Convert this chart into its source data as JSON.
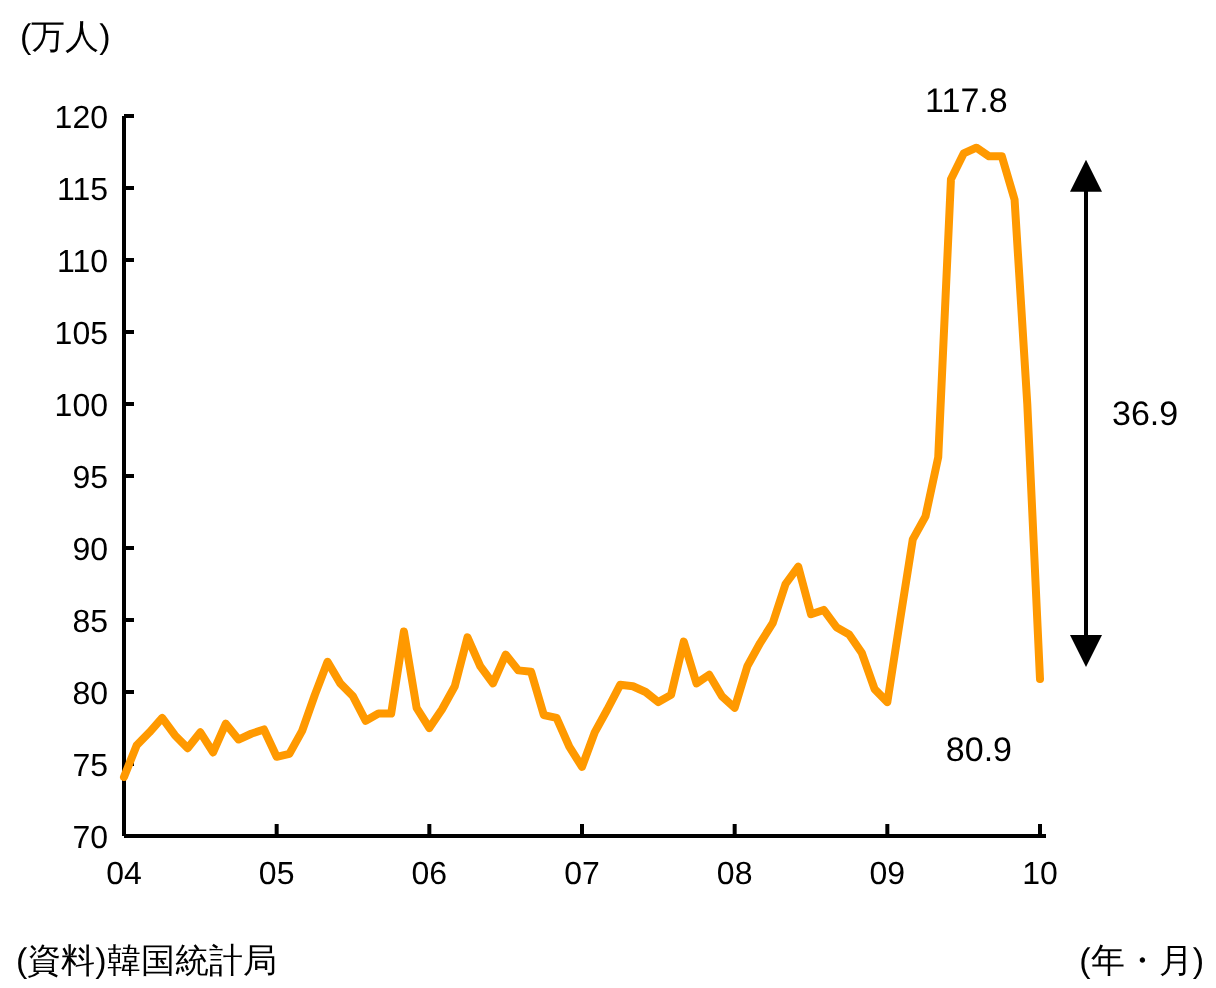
{
  "chart_data": {
    "type": "line",
    "ylabel": "(万人)",
    "xlabel": "(年・月)",
    "x": [
      "2004-01",
      "2004-02",
      "2004-03",
      "2004-04",
      "2004-05",
      "2004-06",
      "2004-07",
      "2004-08",
      "2004-09",
      "2004-10",
      "2004-11",
      "2004-12",
      "2005-01",
      "2005-02",
      "2005-03",
      "2005-04",
      "2005-05",
      "2005-06",
      "2005-07",
      "2005-08",
      "2005-09",
      "2005-10",
      "2005-11",
      "2005-12",
      "2006-01",
      "2006-02",
      "2006-03",
      "2006-04",
      "2006-05",
      "2006-06",
      "2006-07",
      "2006-08",
      "2006-09",
      "2006-10",
      "2006-11",
      "2006-12",
      "2007-01",
      "2007-02",
      "2007-03",
      "2007-04",
      "2007-05",
      "2007-06",
      "2007-07",
      "2007-08",
      "2007-09",
      "2007-10",
      "2007-11",
      "2007-12",
      "2008-01",
      "2008-02",
      "2008-03",
      "2008-04",
      "2008-05",
      "2008-06",
      "2008-07",
      "2008-08",
      "2008-09",
      "2008-10",
      "2008-11",
      "2008-12",
      "2009-01",
      "2009-02",
      "2009-03",
      "2009-04",
      "2009-05",
      "2009-06",
      "2009-07",
      "2009-08",
      "2009-09",
      "2009-10",
      "2009-11",
      "2009-12",
      "2010-01"
    ],
    "series": [
      {
        "color": "#ff9900",
        "values": [
          74.1,
          76.3,
          77.2,
          78.2,
          77.0,
          76.1,
          77.2,
          75.8,
          77.8,
          76.7,
          77.1,
          77.4,
          75.5,
          75.7,
          77.3,
          79.8,
          82.1,
          80.6,
          79.7,
          78.0,
          78.5,
          78.5,
          84.2,
          78.9,
          77.5,
          78.8,
          80.4,
          83.8,
          81.8,
          80.6,
          82.6,
          81.5,
          81.4,
          78.4,
          78.2,
          76.2,
          74.8,
          77.2,
          78.8,
          80.5,
          80.4,
          80.0,
          79.3,
          79.8,
          83.5,
          80.6,
          81.2,
          79.7,
          78.9,
          81.8,
          83.4,
          84.8,
          87.5,
          88.7,
          85.4,
          85.7,
          84.5,
          84.0,
          82.7,
          80.2,
          79.3,
          85.0,
          90.6,
          92.2,
          96.3,
          115.6,
          117.4,
          117.8,
          117.2,
          117.2,
          114.2,
          100.0,
          80.9
        ]
      }
    ],
    "xlim": [
      "2004-01",
      "2010-01"
    ],
    "xticks": [
      {
        "value": "2004-01",
        "label": "04"
      },
      {
        "value": "2005-01",
        "label": "05"
      },
      {
        "value": "2006-01",
        "label": "06"
      },
      {
        "value": "2007-01",
        "label": "07"
      },
      {
        "value": "2008-01",
        "label": "08"
      },
      {
        "value": "2009-01",
        "label": "09"
      },
      {
        "value": "2010-01",
        "label": "10"
      }
    ],
    "ylim": [
      70,
      120
    ],
    "yticks": [
      70,
      75,
      80,
      85,
      90,
      95,
      100,
      105,
      110,
      115,
      120
    ],
    "annotations": [
      {
        "text": "117.8",
        "x": "2009-08",
        "y": 117.8
      },
      {
        "text": "80.9",
        "x": "2010-01",
        "y": 80.9
      },
      "36.9",
      "(資料)韓国統計局"
    ]
  }
}
